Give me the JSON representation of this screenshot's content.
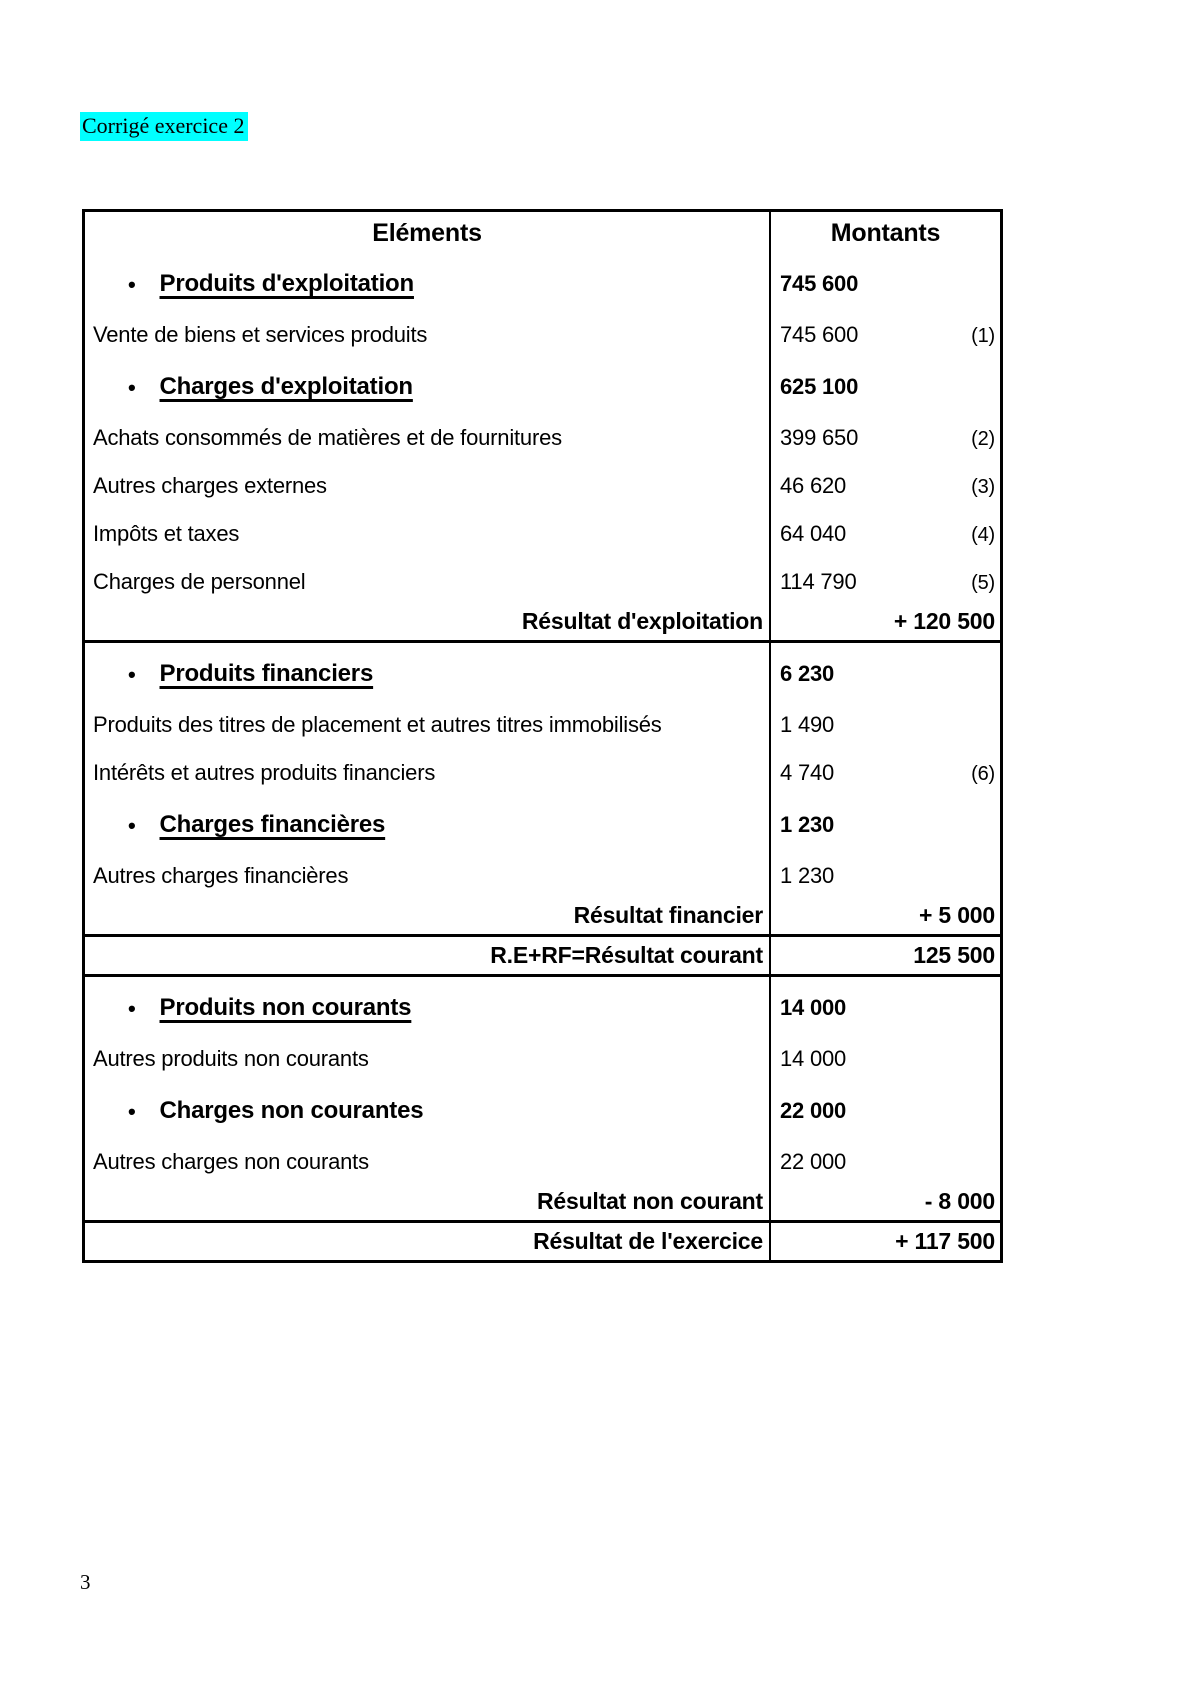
{
  "page": {
    "title": "Corrigé exercice 2",
    "page_number": "3",
    "title_highlight_color": "#00ffff",
    "border_color": "#000000"
  },
  "table": {
    "headers": {
      "elements": "Eléments",
      "amounts": "Montants"
    },
    "rows": [
      {
        "type": "bullet",
        "underline": true,
        "label": "Produits d'exploitation",
        "amount": "745 600"
      },
      {
        "type": "item",
        "label": "Vente de biens et services produits",
        "amount": "745 600",
        "note": "(1)"
      },
      {
        "type": "bullet",
        "underline": true,
        "label": "Charges d'exploitation",
        "amount": "625 100"
      },
      {
        "type": "item",
        "label": "Achats consommés de matières et de fournitures",
        "amount": "399 650",
        "note": "(2)"
      },
      {
        "type": "item",
        "label": "Autres charges externes",
        "amount": "46 620",
        "note": "(3)"
      },
      {
        "type": "item",
        "label": "Impôts et taxes",
        "amount": "64 040",
        "note": "(4)"
      },
      {
        "type": "item",
        "label": "Charges de personnel",
        "amount": "114 790",
        "note": "(5)"
      },
      {
        "type": "result",
        "label": "Résultat d'exploitation",
        "amount": "+ 120 500",
        "section_end": true
      },
      {
        "type": "bullet",
        "underline": true,
        "label": "Produits financiers",
        "amount": "6 230"
      },
      {
        "type": "item",
        "label": "Produits des titres de placement et autres titres immobilisés",
        "amount": "1 490"
      },
      {
        "type": "item",
        "label": "Intérêts et autres produits financiers",
        "amount": "4 740",
        "note": "(6)"
      },
      {
        "type": "bullet",
        "underline": true,
        "label": "Charges financières",
        "amount": "1 230"
      },
      {
        "type": "item",
        "label": "Autres charges financières",
        "amount": "1 230"
      },
      {
        "type": "result",
        "label": "Résultat financier",
        "amount": "+ 5 000",
        "section_end": true
      },
      {
        "type": "result",
        "label": "R.E+RF=Résultat courant",
        "amount": "125 500",
        "section_end": true
      },
      {
        "type": "bullet",
        "underline": true,
        "label": "Produits non courants",
        "amount": "14 000"
      },
      {
        "type": "item",
        "label": "Autres produits non courants",
        "amount": "14 000"
      },
      {
        "type": "bullet",
        "underline": false,
        "label": "Charges non courantes",
        "amount": "22 000"
      },
      {
        "type": "item",
        "label": "Autres charges non courants",
        "amount": "22 000"
      },
      {
        "type": "result",
        "label": "Résultat non courant",
        "amount": "- 8 000",
        "section_end": true
      },
      {
        "type": "result",
        "label": "Résultat de l'exercice",
        "amount": "+ 117 500"
      }
    ]
  }
}
